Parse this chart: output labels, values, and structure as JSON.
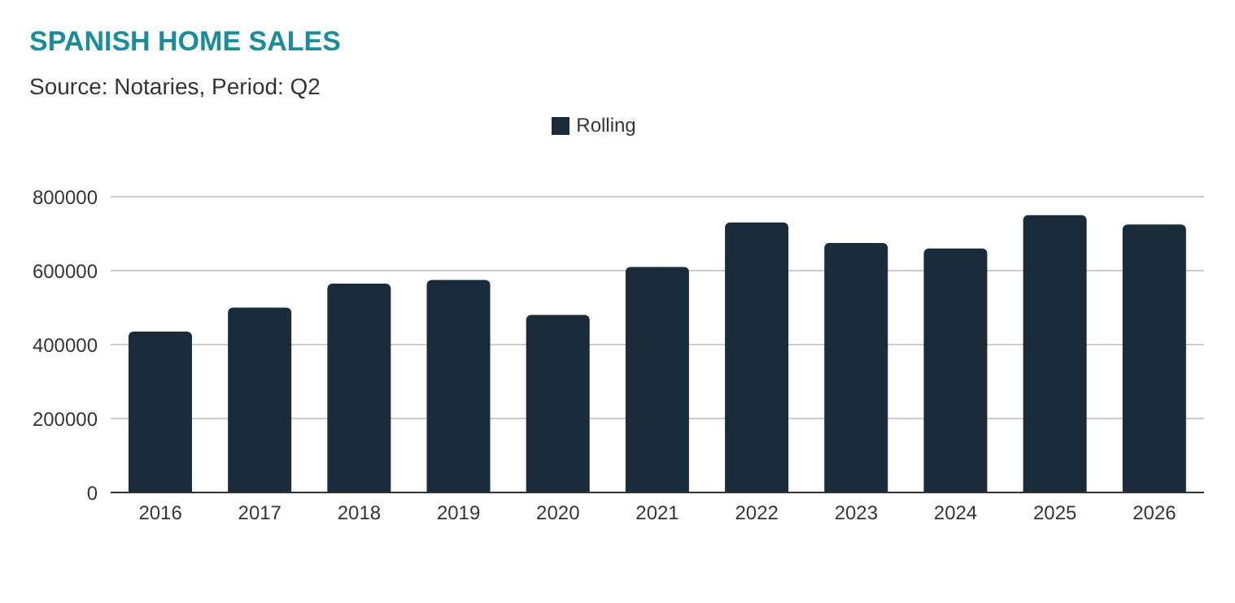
{
  "chart_data": {
    "type": "bar",
    "title": "SPANISH HOME SALES",
    "subtitle": "Source: Notaries, Period: Q2",
    "categories": [
      "2016",
      "2017",
      "2018",
      "2019",
      "2020",
      "2021",
      "2022",
      "2023",
      "2024",
      "2025",
      "2026"
    ],
    "series": [
      {
        "name": "Rolling",
        "color": "#1a2b3a",
        "values": [
          435000,
          500000,
          565000,
          575000,
          480000,
          610000,
          730000,
          675000,
          660000,
          750000,
          725000
        ]
      }
    ],
    "ylim": [
      0,
      800000
    ],
    "yticks": [
      0,
      200000,
      400000,
      600000,
      800000
    ],
    "grid": "y",
    "legend": "top"
  }
}
